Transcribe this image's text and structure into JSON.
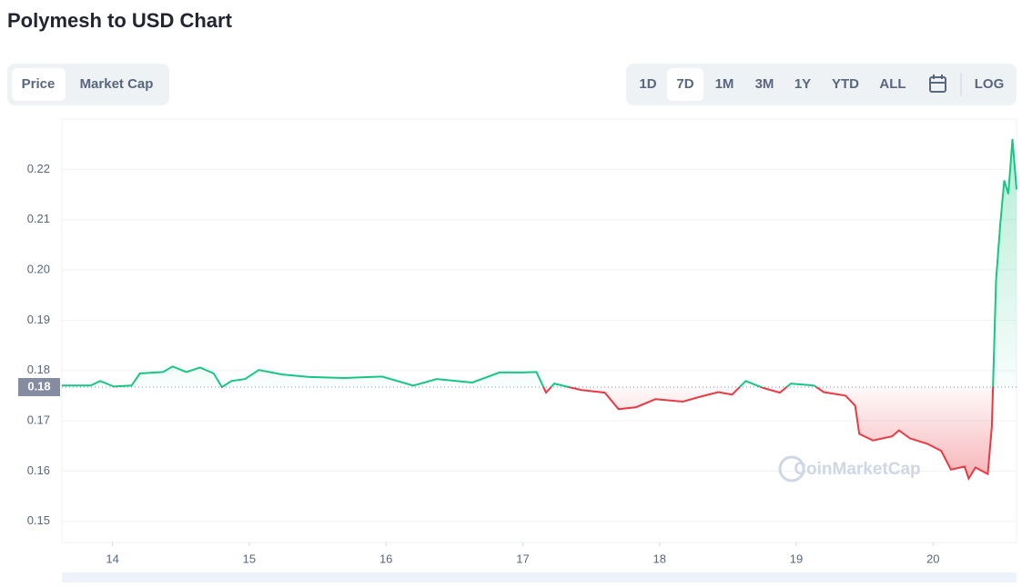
{
  "header": {
    "title": "Polymesh to USD Chart"
  },
  "tabs": [
    "Price",
    "Market Cap"
  ],
  "ranges": [
    "1D",
    "7D",
    "1M",
    "3M",
    "1Y",
    "YTD",
    "ALL"
  ],
  "log_button": "LOG",
  "watermark": "CoinMarketCap",
  "chart_data": {
    "type": "line",
    "x": [
      13.63,
      13.84,
      13.91,
      14.01,
      14.14,
      14.2,
      14.37,
      14.44,
      14.54,
      14.64,
      14.74,
      14.8,
      14.87,
      14.97,
      15.07,
      15.24,
      15.44,
      15.7,
      15.97,
      16.2,
      16.37,
      16.63,
      16.83,
      17.0,
      17.1,
      17.17,
      17.23,
      17.43,
      17.6,
      17.7,
      17.83,
      17.97,
      18.17,
      18.3,
      18.43,
      18.53,
      18.63,
      18.76,
      18.88,
      18.96,
      19.13,
      19.2,
      19.36,
      19.43,
      19.46,
      19.56,
      19.7,
      19.75,
      19.83,
      19.96,
      20.06,
      20.13,
      20.23,
      20.26,
      20.31,
      20.4,
      20.43,
      20.46,
      20.49,
      20.52,
      20.55,
      20.58,
      20.61
    ],
    "series": [
      {
        "name": "Price",
        "color": "#16c784",
        "values": [
          0.177,
          0.177,
          0.1779,
          0.1768,
          0.177,
          0.1794,
          0.1797,
          0.1808,
          0.1797,
          0.1806,
          0.1794,
          0.1767,
          0.1779,
          0.1783,
          0.1801,
          0.1792,
          0.1787,
          0.1785,
          0.1788,
          0.177,
          0.1783,
          0.1776,
          0.1796,
          0.1796,
          0.1797,
          0.1756,
          0.1774,
          0.1761,
          0.1756,
          0.1723,
          0.1727,
          0.1743,
          0.1738,
          0.1748,
          0.1757,
          0.1752,
          0.1779,
          0.1765,
          0.1756,
          0.1774,
          0.177,
          0.1757,
          0.175,
          0.173,
          0.1674,
          0.1661,
          0.1669,
          0.1681,
          0.1665,
          0.1654,
          0.164,
          0.1603,
          0.1609,
          0.1585,
          0.1607,
          0.1594,
          0.1689,
          0.1979,
          0.2088,
          0.2178,
          0.2151,
          0.226,
          0.216
        ]
      }
    ],
    "below_color": "#ea3943",
    "baseline": {
      "value": 0.1767,
      "label": "0.18"
    },
    "xlim": [
      13.63,
      20.61
    ],
    "xticks": [
      14,
      15,
      16,
      17,
      18,
      19,
      20
    ],
    "ylim": [
      0.1458,
      0.23
    ],
    "yticks": [
      0.15,
      0.16,
      0.17,
      0.18,
      0.19,
      {
        "value": 0.2,
        "label": "0.20"
      },
      0.21,
      0.22
    ],
    "grid": true
  }
}
